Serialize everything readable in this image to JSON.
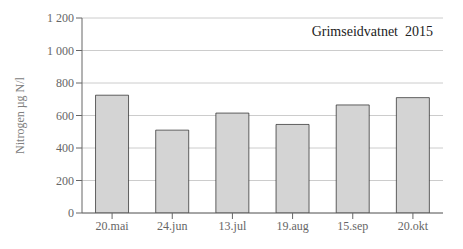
{
  "chart_data": {
    "type": "bar",
    "title": "Grimseidvatnet  2015",
    "ylabel": "Nitrogen  µg N/l",
    "categories": [
      "20.mai",
      "24.jun",
      "13.jul",
      "19.aug",
      "15.sep",
      "20.okt"
    ],
    "values": [
      725,
      510,
      615,
      545,
      665,
      710
    ],
    "color": "#d4d4d4",
    "ylim": [
      0,
      1200
    ],
    "yticks": [
      0,
      200,
      400,
      600,
      800,
      {
        "value": 1000,
        "label": "1 000"
      },
      {
        "value": 1200,
        "label": "1 200"
      }
    ],
    "grid": true
  }
}
